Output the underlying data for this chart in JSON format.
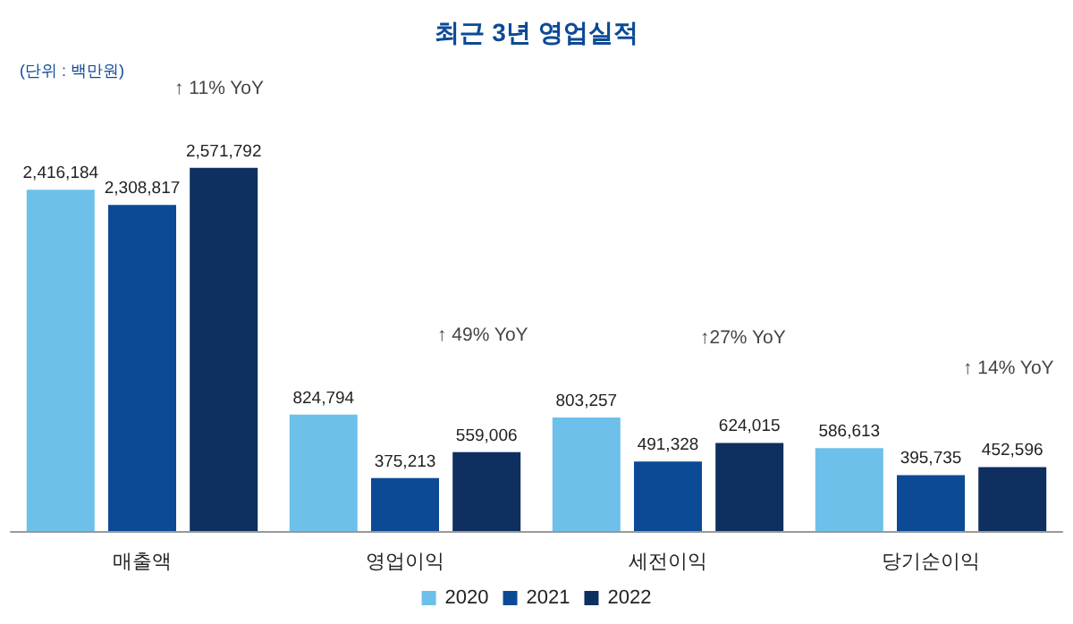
{
  "chart_data": {
    "type": "bar",
    "title": "최근 3년 영업실적",
    "subtitle": "(단위 : 백만원)",
    "categories": [
      "매출액",
      "영업이익",
      "세전이익",
      "당기순이익"
    ],
    "series": [
      {
        "name": "2020",
        "color": "#6cc0ea",
        "values": [
          2416184,
          824794,
          803257,
          586613
        ],
        "value_labels": [
          "2,416,184",
          "824,794",
          "803,257",
          "586,613"
        ]
      },
      {
        "name": "2021",
        "color": "#0c4a96",
        "values": [
          2308817,
          375213,
          491328,
          395735
        ],
        "value_labels": [
          "2,308,817",
          "375,213",
          "491,328",
          "395,735"
        ]
      },
      {
        "name": "2022",
        "color": "#0e2f5f",
        "values": [
          2571792,
          559006,
          624015,
          452596
        ],
        "value_labels": [
          "2,571,792",
          "559,006",
          "624,015",
          "452,596"
        ]
      }
    ],
    "annotations": [
      "↑ 11% YoY",
      "↑ 49% YoY",
      "↑27% YoY",
      "↑ 14% YoY"
    ],
    "legend": "bottom"
  }
}
